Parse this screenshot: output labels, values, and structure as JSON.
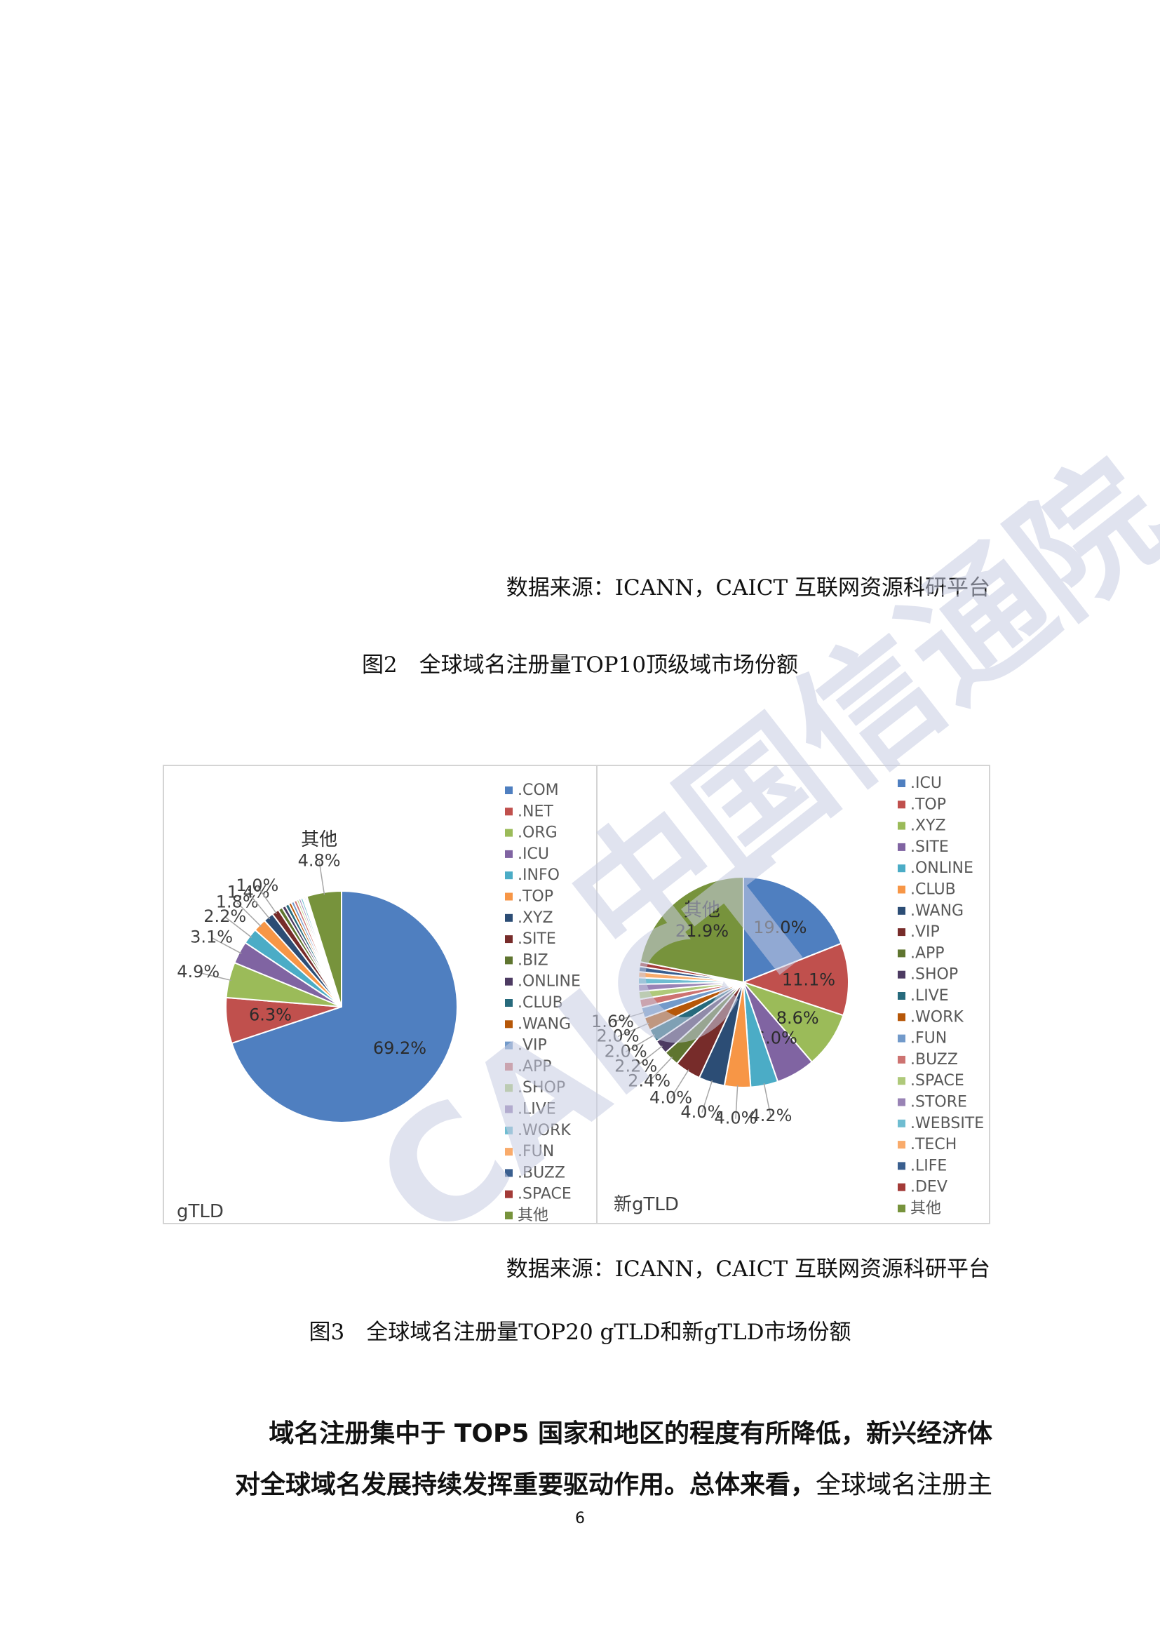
{
  "top_source": "数据来源：ICANN，CAICT 互联网资源科研平台",
  "fig2_caption": "图2　全球域名注册量TOP10顶级域市场份额",
  "chart_data": [
    {
      "type": "pie",
      "title": "gTLD",
      "legend_placement": "right",
      "start_angle": 0,
      "clockwise": true,
      "series": [
        {
          "name": ".COM",
          "value": 69.2,
          "color": "#4f7fc0",
          "label": "69.2%"
        },
        {
          "name": ".NET",
          "value": 6.3,
          "color": "#c0504d",
          "label": "6.3%"
        },
        {
          "name": ".ORG",
          "value": 4.9,
          "color": "#9bbb59",
          "label": "4.9%"
        },
        {
          "name": ".ICU",
          "value": 3.1,
          "color": "#8064a2",
          "label": "3.1%"
        },
        {
          "name": ".INFO",
          "value": 2.2,
          "color": "#4bacc6",
          "label": "2.2%"
        },
        {
          "name": ".TOP",
          "value": 1.8,
          "color": "#f79646",
          "label": "1.8%"
        },
        {
          "name": ".XYZ",
          "value": 1.4,
          "color": "#2c4d75",
          "label": "1.4%"
        },
        {
          "name": ".SITE",
          "value": 1.0,
          "color": "#772c2a",
          "label": "1.0%"
        },
        {
          "name": ".BIZ",
          "value": 0.6,
          "color": "#5f7530"
        },
        {
          "name": ".ONLINE",
          "value": 0.5,
          "color": "#4d3b62"
        },
        {
          "name": ".CLUB",
          "value": 0.5,
          "color": "#276a7c"
        },
        {
          "name": ".WANG",
          "value": 0.4,
          "color": "#b65708"
        },
        {
          "name": ".VIP",
          "value": 0.4,
          "color": "#729aca"
        },
        {
          "name": ".APP",
          "value": 0.4,
          "color": "#cd7371"
        },
        {
          "name": ".SHOP",
          "value": 0.3,
          "color": "#afc97a"
        },
        {
          "name": ".LIVE",
          "value": 0.3,
          "color": "#9983b5"
        },
        {
          "name": ".WORK",
          "value": 0.3,
          "color": "#6fbdd1"
        },
        {
          "name": ".FUN",
          "value": 0.2,
          "color": "#f9ab6b"
        },
        {
          "name": ".BUZZ",
          "value": 0.2,
          "color": "#3a5f8f"
        },
        {
          "name": ".SPACE",
          "value": 0.2,
          "color": "#a33b38"
        },
        {
          "name": "其他",
          "value": 4.8,
          "color": "#77933c",
          "label": "4.8%"
        }
      ]
    },
    {
      "type": "pie",
      "title": "新gTLD",
      "legend_placement": "right",
      "start_angle": 0,
      "clockwise": true,
      "series": [
        {
          "name": ".ICU",
          "value": 19.0,
          "color": "#4f7fc0",
          "label": "19.0%"
        },
        {
          "name": ".TOP",
          "value": 11.1,
          "color": "#c0504d",
          "label": "11.1%"
        },
        {
          "name": ".XYZ",
          "value": 8.6,
          "color": "#9bbb59",
          "label": "8.6%"
        },
        {
          "name": ".SITE",
          "value": 6.0,
          "color": "#8064a2",
          "label": "6.0%"
        },
        {
          "name": ".ONLINE",
          "value": 4.2,
          "color": "#4bacc6",
          "label": "4.2%"
        },
        {
          "name": ".CLUB",
          "value": 4.0,
          "color": "#f79646",
          "label": "4.0%"
        },
        {
          "name": ".WANG",
          "value": 4.0,
          "color": "#2c4d75",
          "label": "4.0%"
        },
        {
          "name": ".VIP",
          "value": 4.0,
          "color": "#772c2a",
          "label": "4.0%"
        },
        {
          "name": ".APP",
          "value": 2.4,
          "color": "#5f7530",
          "label": "2.4%"
        },
        {
          "name": ".SHOP",
          "value": 2.2,
          "color": "#4d3b62",
          "label": "2.2%"
        },
        {
          "name": ".LIVE",
          "value": 2.0,
          "color": "#276a7c",
          "label": "2.0%"
        },
        {
          "name": ".WORK",
          "value": 2.0,
          "color": "#b65708",
          "label": "2.0%"
        },
        {
          "name": ".FUN",
          "value": 1.6,
          "color": "#729aca",
          "label": "1.6%"
        },
        {
          "name": ".BUZZ",
          "value": 1.3,
          "color": "#cd7371"
        },
        {
          "name": ".SPACE",
          "value": 1.2,
          "color": "#afc97a"
        },
        {
          "name": ".STORE",
          "value": 1.1,
          "color": "#9983b5"
        },
        {
          "name": ".WEBSITE",
          "value": 1.0,
          "color": "#6fbdd1"
        },
        {
          "name": ".TECH",
          "value": 0.9,
          "color": "#f9ab6b"
        },
        {
          "name": ".LIFE",
          "value": 0.8,
          "color": "#3a5f8f"
        },
        {
          "name": ".DEV",
          "value": 0.7,
          "color": "#a33b38"
        },
        {
          "name": "其他",
          "value": 21.9,
          "color": "#77933c",
          "label": "21.9%"
        }
      ]
    }
  ],
  "bottom_source": "数据来源：ICANN，CAICT 互联网资源科研平台",
  "fig3_caption": "图3　全球域名注册量TOP20 gTLD和新gTLD市场份额",
  "paragraph": {
    "line1_bold": "域名注册集中于 TOP5 国家和地区的程度有所降低，新兴经济体",
    "line2_bold": "对全球域名发展持续发挥重要驱动作用。总体来看，",
    "line2_normal": "全球域名注册主"
  },
  "page_number": "6",
  "watermark": {
    "text_latin": "CAICT",
    "text_cn": "中国信通院",
    "color": "#c8cde3"
  }
}
